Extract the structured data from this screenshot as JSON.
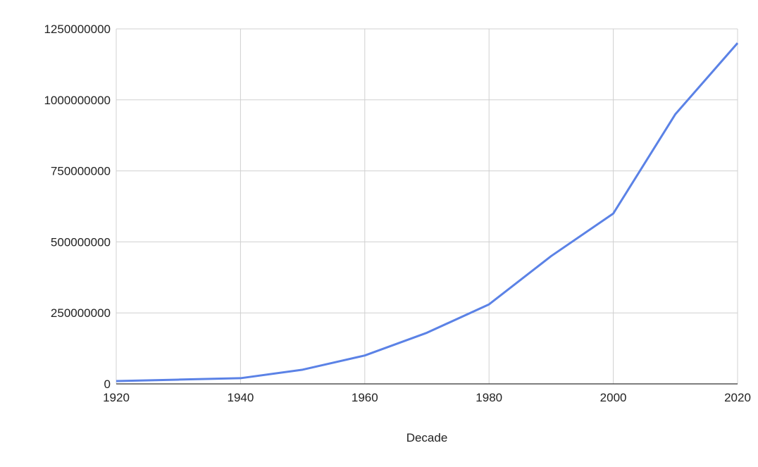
{
  "chart_data": {
    "type": "line",
    "x_label": "Decade",
    "x": [
      1920,
      1930,
      1940,
      1950,
      1960,
      1970,
      1980,
      1990,
      2000,
      2010,
      2020
    ],
    "series": [
      {
        "color": "#5b82e6",
        "values": [
          10000000,
          15000000,
          20000000,
          50000000,
          100000000,
          180000000,
          280000000,
          450000000,
          600000000,
          950000000,
          1200000000
        ]
      }
    ],
    "xlim": [
      1920,
      2020
    ],
    "xticks": [
      1920,
      1940,
      1960,
      1980,
      2000,
      2020
    ],
    "ylim": [
      0,
      1250000000
    ],
    "yticks": [
      0,
      250000000,
      500000000,
      750000000,
      1000000000,
      1250000000
    ],
    "grid": true
  }
}
